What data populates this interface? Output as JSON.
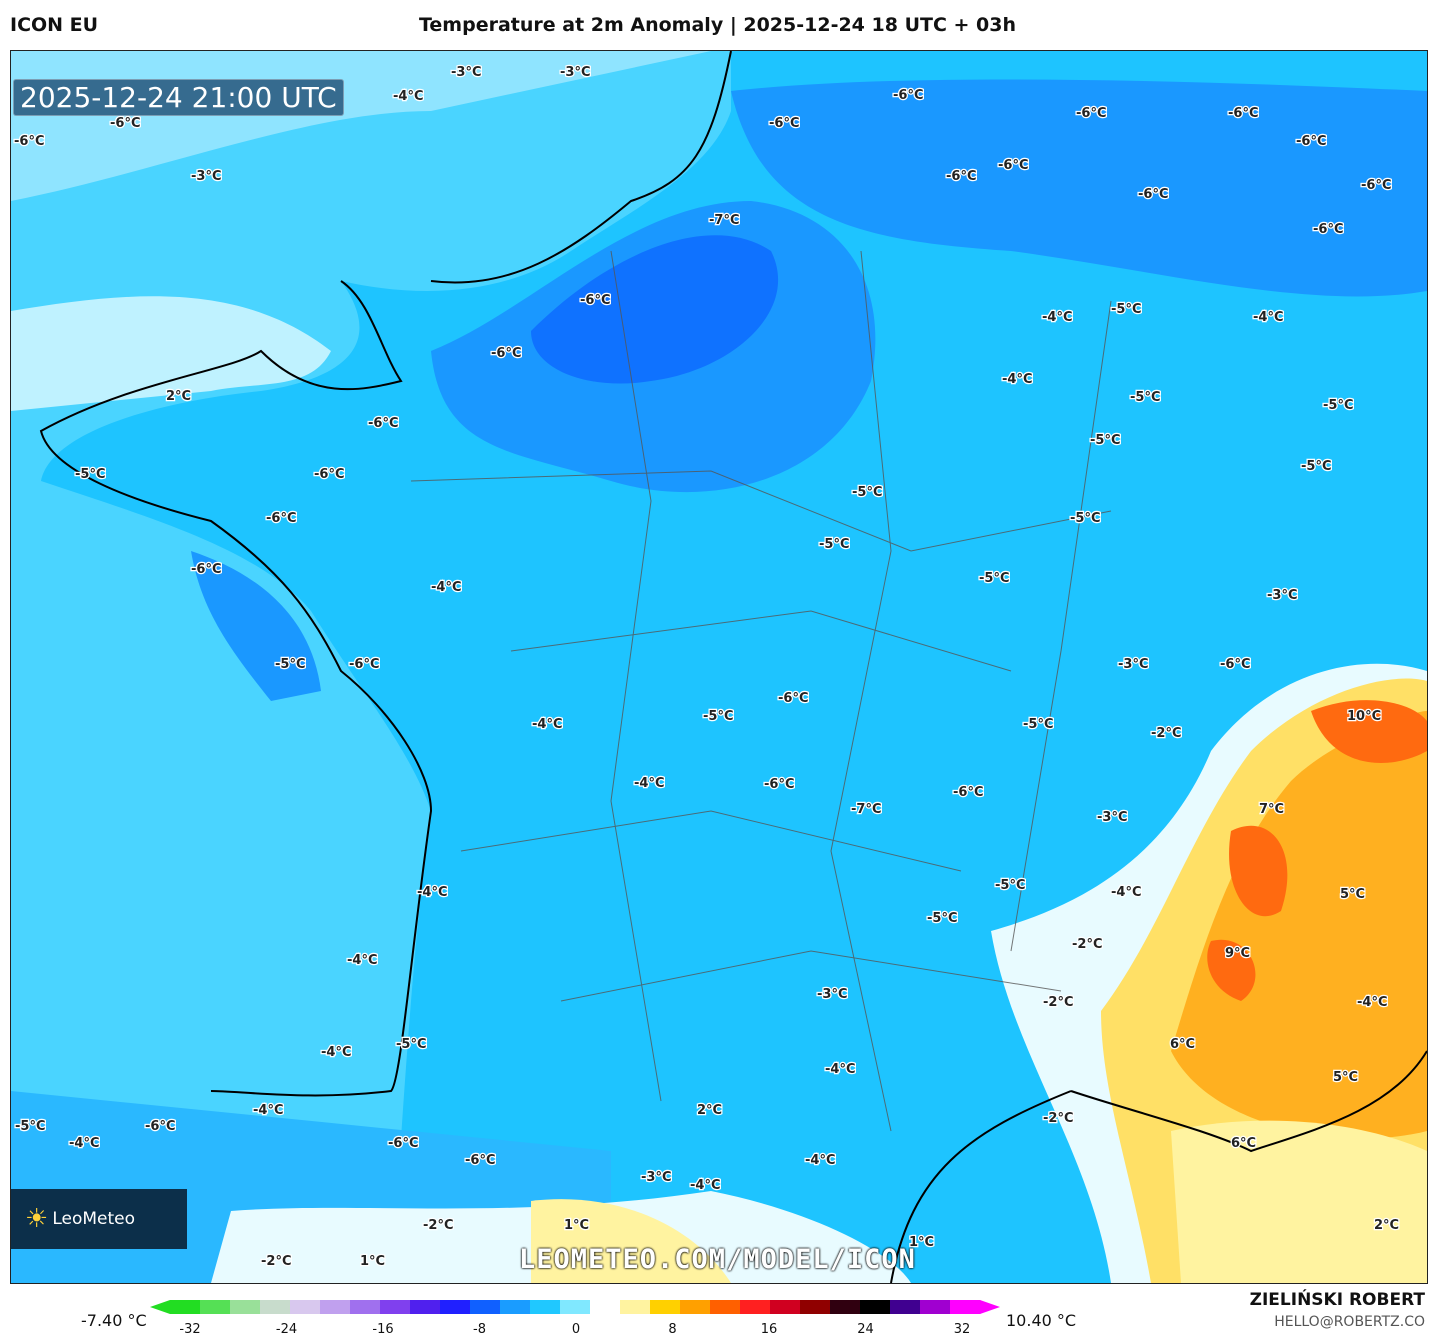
{
  "header": {
    "model": "ICON EU",
    "title": "Temperature at 2m Anomaly | 2025-12-24 18 UTC + 03h"
  },
  "map": {
    "valid_time": "2025-12-24 21:00 UTC",
    "watermark": "LEOMETEO.COM/MODEL/ICON",
    "logo_text": "LeoMeteo",
    "contour_labels": [
      "-3°C",
      "-3°C",
      "-4°C",
      "-6°C",
      "-6°C",
      "-3°C",
      "-6°C",
      "-6°C",
      "-6°C",
      "-6°C",
      "-6°C",
      "-6°C",
      "-6°C",
      "-6°C",
      "-6°C",
      "-7°C",
      "-6°C",
      "-6°C",
      "-4°C",
      "-5°C",
      "-4°C",
      "-6°C",
      "-4°C",
      "2°C",
      "-5°C",
      "-5°C",
      "-6°C",
      "-5°C",
      "-5°C",
      "-6°C",
      "-5°C",
      "-5°C",
      "-6°C",
      "-5°C",
      "-5°C",
      "-6°C",
      "-5°C",
      "-4°C",
      "-3°C",
      "-5°C",
      "-6°C",
      "-3°C",
      "-6°C",
      "-6°C",
      "-5°C",
      "10°C",
      "-4°C",
      "-5°C",
      "-2°C",
      "-4°C",
      "-6°C",
      "-7°C",
      "-6°C",
      "7°C",
      "-3°C",
      "-4°C",
      "-5°C",
      "-4°C",
      "5°C",
      "-5°C",
      "-2°C",
      "9°C",
      "-4°C",
      "-3°C",
      "-2°C",
      "-4°C",
      "-5°C",
      "-4°C",
      "6°C",
      "-4°C",
      "5°C",
      "-4°C",
      "2°C",
      "-2°C",
      "-5°C",
      "-6°C",
      "-4°C",
      "-6°C",
      "6°C",
      "-4°C",
      "-6°C",
      "-3°C",
      "-4°C",
      "2°C",
      "-2°C",
      "1°C",
      "1°C",
      "-2°C",
      "1°C"
    ]
  },
  "colorbar": {
    "min_label": "-7.40 °C",
    "max_label": "10.40 °C",
    "ticks": [
      "-32",
      "-24",
      "-16",
      "-8",
      "0",
      "8",
      "16",
      "24",
      "32"
    ],
    "colors": [
      "#22dd22",
      "#55e055",
      "#99e099",
      "#c8dccc",
      "#d8c8ee",
      "#c0a0ee",
      "#a070ee",
      "#8040ee",
      "#5020ee",
      "#2020ff",
      "#1060ff",
      "#1a9cff",
      "#20c8ff",
      "#80e8ff",
      "#ffffff",
      "#fff3a0",
      "#ffd000",
      "#ffa000",
      "#ff6000",
      "#ff2020",
      "#d00020",
      "#900000",
      "#300010",
      "#000000",
      "#400090",
      "#a000d0",
      "#ff00ff"
    ]
  },
  "footer": {
    "author": "ZIELIŃSKI ROBERT",
    "email": "HELLO@ROBERTZ.CO"
  },
  "palette": {
    "ocean_light": "#a6ecff",
    "ocean": "#4ad4ff",
    "land": "#1ec4ff",
    "cold": "#1a98ff",
    "colder": "#0f72ff",
    "warm": "#ffc21a",
    "hot": "#ff7a10"
  }
}
